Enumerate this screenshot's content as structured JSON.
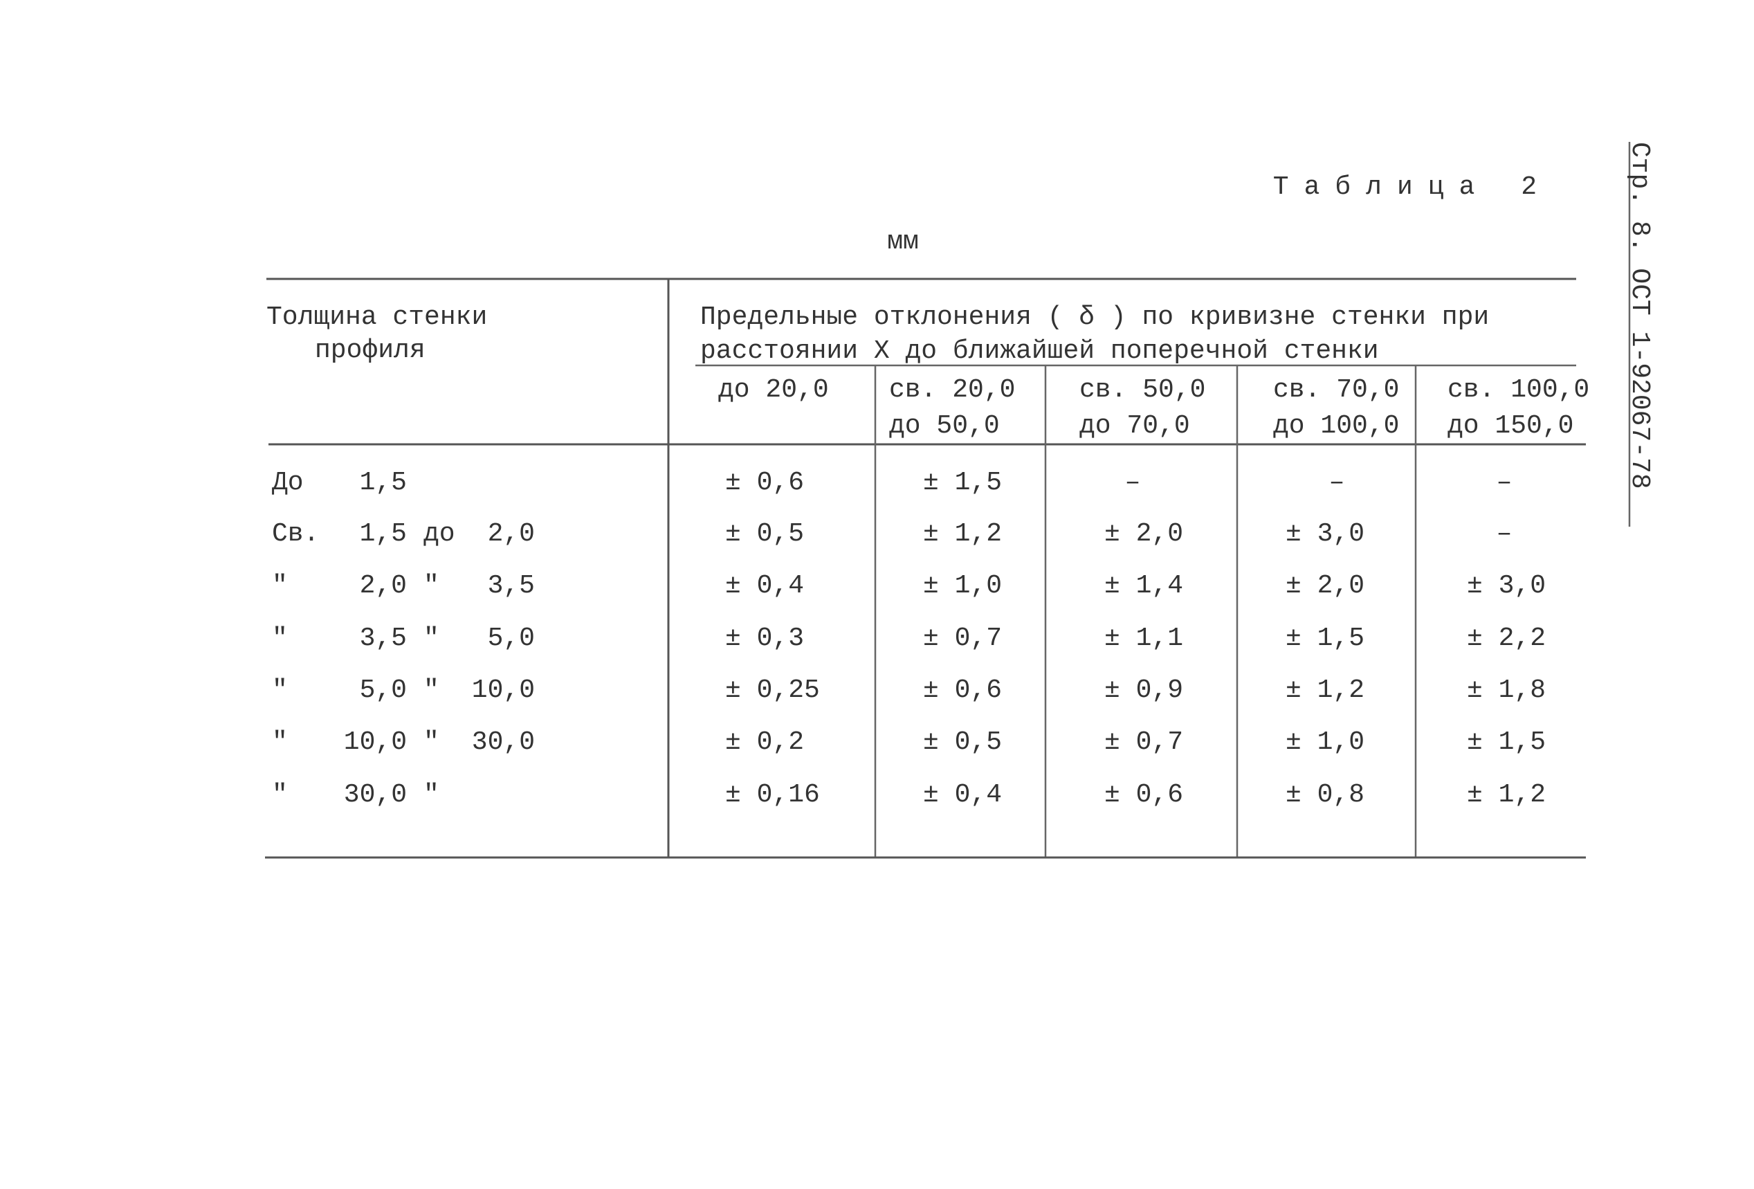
{
  "side_label": "Стр. 8. ОСТ 1-92067-78",
  "table": {
    "title": "Таблица 2",
    "unit": "мм",
    "header": {
      "first_column": [
        "Толщина стенки",
        "профиля"
      ],
      "group": [
        "Предельные отклонения ( δ ) по кривизне стенки при",
        "расстоянии X до ближайшей поперечной стенки"
      ],
      "columns": [
        [
          "до 20,0"
        ],
        [
          "св. 20,0",
          "до 50,0"
        ],
        [
          "св. 50,0",
          "до 70,0"
        ],
        [
          "св. 70,0",
          "до 100,0"
        ],
        [
          "св. 100,0",
          "до 150,0"
        ]
      ]
    },
    "rows": [
      {
        "thickness": [
          "До",
          "1,5"
        ],
        "values": [
          "± 0,6",
          "± 1,5",
          "–",
          "–",
          "–"
        ]
      },
      {
        "thickness": [
          "Св.",
          "1,5",
          "до",
          "2,0"
        ],
        "values": [
          "± 0,5",
          "± 1,2",
          "± 2,0",
          "± 3,0",
          "–"
        ]
      },
      {
        "thickness": [
          "″",
          "2,0",
          "″",
          "3,5"
        ],
        "values": [
          "± 0,4",
          "± 1,0",
          "± 1,4",
          "± 2,0",
          "± 3,0"
        ]
      },
      {
        "thickness": [
          "″",
          "3,5",
          "″",
          "5,0"
        ],
        "values": [
          "± 0,3",
          "± 0,7",
          "± 1,1",
          "± 1,5",
          "± 2,2"
        ]
      },
      {
        "thickness": [
          "″",
          "5,0",
          "″",
          "10,0"
        ],
        "values": [
          "± 0,25",
          "± 0,6",
          "± 0,9",
          "± 1,2",
          "± 1,8"
        ]
      },
      {
        "thickness": [
          "″",
          "10,0",
          "″",
          "30,0"
        ],
        "values": [
          "± 0,2",
          "± 0,5",
          "± 0,7",
          "± 1,0",
          "± 1,5"
        ]
      },
      {
        "thickness": [
          "″",
          "30,0",
          "″"
        ],
        "values": [
          "± 0,16",
          "± 0,4",
          "± 0,6",
          "± 0,8",
          "± 1,2"
        ]
      }
    ]
  }
}
